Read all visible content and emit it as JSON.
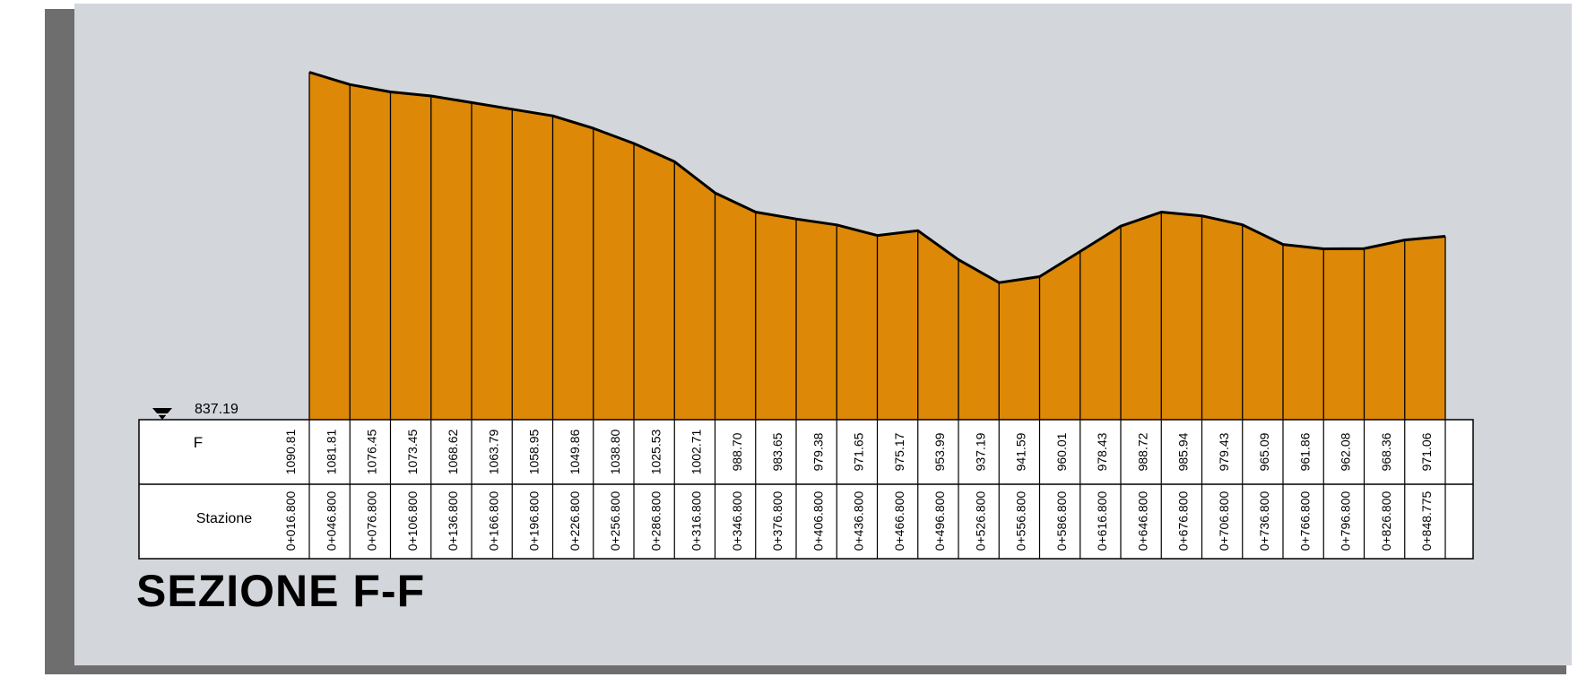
{
  "title": "SEZIONE F-F",
  "reference": {
    "label": "837.19",
    "value": 837.19
  },
  "table": {
    "row1_label": "F",
    "row2_label": "Stazione"
  },
  "colors": {
    "fill": "#dd8806",
    "panel": "#d3d6da",
    "shadow": "#6e6e6e",
    "line": "#000000"
  },
  "chart_data": {
    "type": "area",
    "title": "SEZIONE F-F",
    "ylim_reference": 837.19,
    "x": [
      16.8,
      46.8,
      76.8,
      106.8,
      136.8,
      166.8,
      196.8,
      226.8,
      256.8,
      286.8,
      316.8,
      346.8,
      376.8,
      406.8,
      436.8,
      466.8,
      496.8,
      526.8,
      556.8,
      586.8,
      616.8,
      646.8,
      676.8,
      706.8,
      736.8,
      766.8,
      796.8,
      826.8,
      848.775
    ],
    "stations": [
      "0+016.800",
      "0+046.800",
      "0+076.800",
      "0+106.800",
      "0+136.800",
      "0+166.800",
      "0+196.800",
      "0+226.800",
      "0+256.800",
      "0+286.800",
      "0+316.800",
      "0+346.800",
      "0+376.800",
      "0+406.800",
      "0+436.800",
      "0+466.800",
      "0+496.800",
      "0+526.800",
      "0+556.800",
      "0+586.800",
      "0+616.800",
      "0+646.800",
      "0+676.800",
      "0+706.800",
      "0+736.800",
      "0+766.800",
      "0+796.800",
      "0+826.800",
      "0+848.775"
    ],
    "elevations": [
      1090.81,
      1081.81,
      1076.45,
      1073.45,
      1068.62,
      1063.79,
      1058.95,
      1049.86,
      1038.8,
      1025.53,
      1002.71,
      988.7,
      983.65,
      979.38,
      971.65,
      975.17,
      953.99,
      937.19,
      941.59,
      960.01,
      978.43,
      988.72,
      985.94,
      979.43,
      965.09,
      961.86,
      962.08,
      968.36,
      971.06
    ],
    "elevation_labels": [
      "1090.81",
      "1081.81",
      "1076.45",
      "1073.45",
      "1068.62",
      "1063.79",
      "1058.95",
      "1049.86",
      "1038.80",
      "1025.53",
      "1002.71",
      "988.70",
      "983.65",
      "979.38",
      "971.65",
      "975.17",
      "953.99",
      "937.19",
      "941.59",
      "960.01",
      "978.43",
      "988.72",
      "985.94",
      "979.43",
      "965.09",
      "961.86",
      "962.08",
      "968.36",
      "971.06"
    ]
  }
}
